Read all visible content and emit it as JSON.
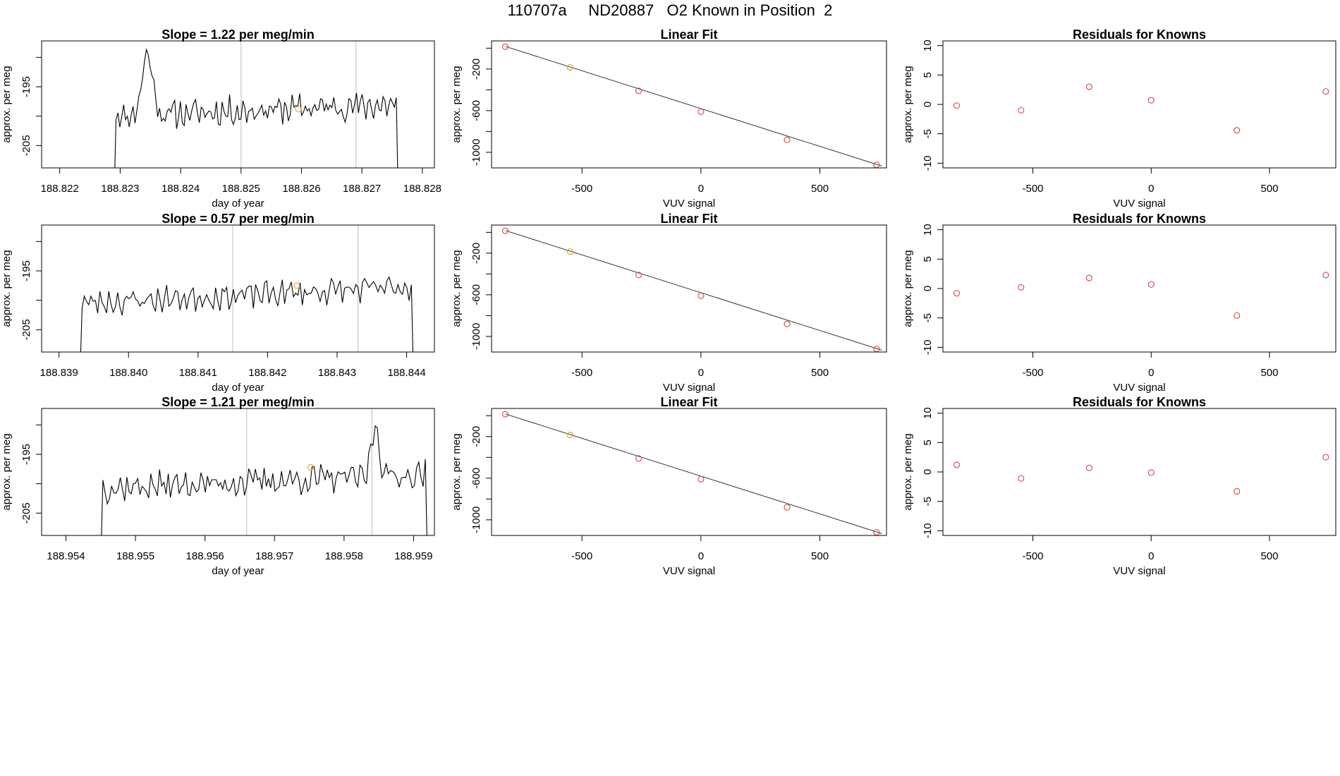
{
  "title": "110707a     ND20887   O2 Known in Position  2",
  "colors": {
    "line": "#000000",
    "points": "#d9534f",
    "highlight": "#f0a030",
    "refline": "#c8c8c8",
    "frame": "#000000"
  },
  "chart_data": [
    {
      "type": "line",
      "title": "Slope =  1.22  per meg/min",
      "xlabel": "day of year",
      "ylabel": "approx. per meg",
      "xlim": [
        188.8217,
        188.8282
      ],
      "ylim": [
        -208.8,
        -187.2
      ],
      "xticks": [
        "188.822",
        "188.823",
        "188.824",
        "188.825",
        "188.826",
        "188.827",
        "188.828"
      ],
      "xtick_values": [
        188.822,
        188.823,
        188.824,
        188.825,
        188.826,
        188.827,
        188.828
      ],
      "yticks": [
        "-205",
        "-195"
      ],
      "ytick_values": [
        -205,
        -195
      ],
      "yticks_unlabeled": [
        -210,
        -200,
        -190
      ],
      "x_start": 188.8229,
      "x_end": 188.8276,
      "baseline": -200.0,
      "amplitude": 2.2,
      "seed": 11,
      "peaks": [
        [
          188.82345,
          -189.5,
          0.00012
        ]
      ],
      "rise": 2.0,
      "drop_left": true,
      "vlines": [
        188.825,
        188.8269
      ],
      "highlight_point": [
        188.82595,
        -198.8
      ]
    },
    {
      "type": "scatter",
      "title": "Linear Fit",
      "xlabel": "VUV signal",
      "ylabel": "approx. per meg",
      "xlim": [
        -880,
        780
      ],
      "ylim": [
        -1150,
        70
      ],
      "xticks": [
        "-500",
        "0",
        "500"
      ],
      "xtick_values": [
        -500,
        0,
        500
      ],
      "yticks": [
        "-200",
        "-600",
        "-1000"
      ],
      "ytick_values": [
        -200,
        -600,
        -1000
      ],
      "yticks_unlabeled": [
        0,
        -400,
        -800
      ],
      "points": [
        [
          -822,
          15
        ],
        [
          -550,
          -185
        ],
        [
          -262,
          -410
        ],
        [
          0,
          -610
        ],
        [
          362,
          -880
        ],
        [
          738,
          -1120
        ]
      ],
      "highlight_index": 1,
      "fit": [
        [
          -822,
          17
        ],
        [
          760,
          -1132
        ]
      ]
    },
    {
      "type": "scatter",
      "title": "Residuals for Knowns",
      "xlabel": "VUV signal",
      "ylabel": "approx. per meg",
      "xlim": [
        -880,
        780
      ],
      "ylim": [
        -10.8,
        10.8
      ],
      "xticks": [
        "-500",
        "0",
        "500"
      ],
      "xtick_values": [
        -500,
        0,
        500
      ],
      "yticks": [
        "10",
        "5",
        "0",
        "-5",
        "-10"
      ],
      "ytick_values": [
        10,
        5,
        0,
        -5,
        -10
      ],
      "points": [
        [
          -822,
          -0.2
        ],
        [
          -550,
          -1.0
        ],
        [
          -262,
          3.0
        ],
        [
          0,
          0.7
        ],
        [
          362,
          -4.4
        ],
        [
          738,
          2.2
        ]
      ]
    },
    {
      "type": "line",
      "title": "Slope =  0.57  per meg/min",
      "xlabel": "day of year",
      "ylabel": "approx. per meg",
      "xlim": [
        188.83875,
        188.8444
      ],
      "ylim": [
        -208.8,
        -187.2
      ],
      "xticks": [
        "188.839",
        "188.840",
        "188.841",
        "188.842",
        "188.843",
        "188.844"
      ],
      "xtick_values": [
        188.839,
        188.84,
        188.841,
        188.842,
        188.843,
        188.844
      ],
      "yticks": [
        "-205",
        "-195"
      ],
      "ytick_values": [
        -205,
        -195
      ],
      "yticks_unlabeled": [
        -210,
        -200,
        -190
      ],
      "x_start": 188.8393,
      "x_end": 188.8441,
      "baseline": -200.5,
      "amplitude": 2.0,
      "seed": 23,
      "peaks": [],
      "rise": 2.8,
      "drop_left": true,
      "vlines": [
        188.8415,
        188.8433
      ],
      "highlight_point": [
        188.84242,
        -197.5
      ]
    },
    {
      "type": "scatter",
      "title": "Linear Fit",
      "xlabel": "VUV signal",
      "ylabel": "approx. per meg",
      "xlim": [
        -880,
        780
      ],
      "ylim": [
        -1150,
        70
      ],
      "xticks": [
        "-500",
        "0",
        "500"
      ],
      "xtick_values": [
        -500,
        0,
        500
      ],
      "yticks": [
        "-200",
        "-600",
        "-1000"
      ],
      "ytick_values": [
        -200,
        -600,
        -1000
      ],
      "yticks_unlabeled": [
        0,
        -400,
        -800
      ],
      "points": [
        [
          -822,
          15
        ],
        [
          -550,
          -185
        ],
        [
          -262,
          -410
        ],
        [
          0,
          -610
        ],
        [
          362,
          -880
        ],
        [
          738,
          -1120
        ]
      ],
      "highlight_index": 1,
      "fit": [
        [
          -822,
          17
        ],
        [
          760,
          -1132
        ]
      ]
    },
    {
      "type": "scatter",
      "title": "Residuals for Knowns",
      "xlabel": "VUV signal",
      "ylabel": "approx. per meg",
      "xlim": [
        -880,
        780
      ],
      "ylim": [
        -10.8,
        10.8
      ],
      "xticks": [
        "-500",
        "0",
        "500"
      ],
      "xtick_values": [
        -500,
        0,
        500
      ],
      "yticks": [
        "10",
        "5",
        "0",
        "-5",
        "-10"
      ],
      "ytick_values": [
        10,
        5,
        0,
        -5,
        -10
      ],
      "points": [
        [
          -822,
          -0.8
        ],
        [
          -550,
          0.2
        ],
        [
          -262,
          1.8
        ],
        [
          0,
          0.7
        ],
        [
          362,
          -4.6
        ],
        [
          738,
          2.3
        ]
      ]
    },
    {
      "type": "line",
      "title": "Slope =  1.21  per meg/min",
      "xlabel": "day of year",
      "ylabel": "approx. per meg",
      "xlim": [
        188.95365,
        188.9593
      ],
      "ylim": [
        -208.8,
        -187.2
      ],
      "xticks": [
        "188.954",
        "188.955",
        "188.956",
        "188.957",
        "188.958",
        "188.959"
      ],
      "xtick_values": [
        188.954,
        188.955,
        188.956,
        188.957,
        188.958,
        188.959
      ],
      "yticks": [
        "-205",
        "-195"
      ],
      "ytick_values": [
        -205,
        -195
      ],
      "yticks_unlabeled": [
        -210,
        -200,
        -190
      ],
      "x_start": 188.9545,
      "x_end": 188.9592,
      "baseline": -200.8,
      "amplitude": 2.2,
      "seed": 37,
      "peaks": [
        [
          188.95845,
          -192.0,
          8e-05
        ]
      ],
      "rise": 2.4,
      "drop_left": true,
      "vlines": [
        188.9566,
        188.9584
      ],
      "highlight_point": [
        188.95752,
        -197.2
      ]
    },
    {
      "type": "scatter",
      "title": "Linear Fit",
      "xlabel": "VUV signal",
      "ylabel": "approx. per meg",
      "xlim": [
        -880,
        780
      ],
      "ylim": [
        -1150,
        70
      ],
      "xticks": [
        "-500",
        "0",
        "500"
      ],
      "xtick_values": [
        -500,
        0,
        500
      ],
      "yticks": [
        "-200",
        "-600",
        "-1000"
      ],
      "ytick_values": [
        -200,
        -600,
        -1000
      ],
      "yticks_unlabeled": [
        0,
        -400,
        -800
      ],
      "points": [
        [
          -822,
          15
        ],
        [
          -550,
          -185
        ],
        [
          -262,
          -410
        ],
        [
          0,
          -610
        ],
        [
          362,
          -880
        ],
        [
          738,
          -1120
        ]
      ],
      "highlight_index": 1,
      "fit": [
        [
          -822,
          17
        ],
        [
          760,
          -1132
        ]
      ]
    },
    {
      "type": "scatter",
      "title": "Residuals for Knowns",
      "xlabel": "VUV signal",
      "ylabel": "approx. per meg",
      "xlim": [
        -880,
        780
      ],
      "ylim": [
        -10.8,
        10.8
      ],
      "xticks": [
        "-500",
        "0",
        "500"
      ],
      "xtick_values": [
        -500,
        0,
        500
      ],
      "yticks": [
        "10",
        "5",
        "0",
        "-5",
        "-10"
      ],
      "ytick_values": [
        10,
        5,
        0,
        -5,
        -10
      ],
      "points": [
        [
          -822,
          1.2
        ],
        [
          -550,
          -1.1
        ],
        [
          -262,
          0.7
        ],
        [
          0,
          -0.1
        ],
        [
          362,
          -3.3
        ],
        [
          738,
          2.5
        ]
      ]
    }
  ]
}
